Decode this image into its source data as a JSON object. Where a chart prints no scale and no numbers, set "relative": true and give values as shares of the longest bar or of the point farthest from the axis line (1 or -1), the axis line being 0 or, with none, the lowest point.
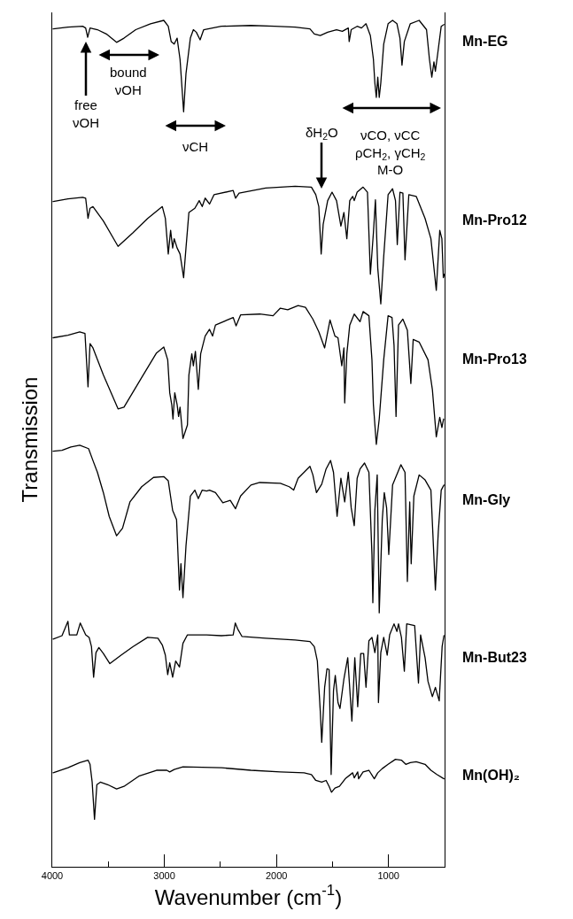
{
  "chart_data": {
    "type": "line",
    "relative": true,
    "line_style": "solid",
    "xlabel": "Wavenumber (cm$^{-1}$)",
    "ylabel": "Transmission",
    "xlim": [
      4000,
      500
    ],
    "xticks": [
      4000,
      {
        "value": 3500,
        "label": null
      },
      3000,
      {
        "value": 2500,
        "label": null
      },
      2000,
      {
        "value": 1500,
        "label": null
      },
      1000
    ],
    "annotations": [
      "free\nνOH",
      "bound\nνOH",
      "νCH",
      "δH$_{2}$O",
      "νCO, νCC\nρCH$_{2}$, γCH$_{2}$\nM-O"
    ],
    "series": [
      {
        "name": "Mn-EG",
        "color": "#000000",
        "x": [
          3992,
          3860,
          3729,
          3702,
          3684,
          3663,
          3597,
          3518,
          3426,
          3360,
          3255,
          3123,
          3005,
          2965,
          2939,
          2912,
          2886,
          2860,
          2828,
          2807,
          2768,
          2741,
          2715,
          2681,
          2649,
          2570,
          2491,
          2228,
          2017,
          1833,
          1701,
          1662,
          1609,
          1543,
          1464,
          1412,
          1359,
          1351,
          1333,
          1280,
          1241,
          1201,
          1162,
          1135,
          1122,
          1109,
          1096,
          1083,
          1069,
          1043,
          1004,
          964,
          925,
          898,
          880,
          859,
          806,
          727,
          661,
          635,
          614,
          595,
          582,
          561,
          530,
          506
        ],
        "values": [
          0.99,
          0.992,
          0.993,
          0.991,
          0.98,
          0.991,
          0.989,
          0.984,
          0.974,
          0.979,
          0.989,
          0.996,
          1.0,
          0.993,
          0.975,
          0.972,
          0.979,
          0.954,
          0.892,
          0.937,
          0.979,
          0.989,
          0.986,
          0.977,
          0.989,
          0.991,
          0.993,
          0.994,
          0.993,
          0.992,
          0.99,
          0.984,
          0.982,
          0.986,
          0.989,
          0.987,
          0.991,
          0.975,
          0.989,
          0.993,
          0.991,
          0.996,
          0.982,
          0.954,
          0.926,
          0.909,
          0.933,
          0.909,
          0.926,
          0.972,
          0.996,
          1.0,
          0.996,
          0.979,
          0.947,
          0.975,
          0.996,
          1.0,
          0.989,
          0.954,
          0.933,
          0.951,
          0.94,
          0.961,
          0.993,
          0.995
        ]
      },
      {
        "name": "Mn-Pro12",
        "color": "#000000",
        "x": [
          3992,
          3860,
          3729,
          3702,
          3681,
          3663,
          3637,
          3544,
          3413,
          3281,
          3149,
          3018,
          2991,
          2965,
          2944,
          2926,
          2912,
          2886,
          2860,
          2828,
          2807,
          2781,
          2728,
          2689,
          2662,
          2636,
          2597,
          2557,
          2386,
          2365,
          2333,
          2096,
          1833,
          1688,
          1649,
          1622,
          1601,
          1583,
          1543,
          1504,
          1464,
          1425,
          1398,
          1372,
          1346,
          1320,
          1306,
          1280,
          1227,
          1188,
          1162,
          1135,
          1117,
          1096,
          1069,
          1043,
          1004,
          964,
          938,
          922,
          898,
          872,
          853,
          819,
          753,
          674,
          622,
          574,
          543,
          524,
          511,
          503
        ],
        "values": [
          0.786,
          0.789,
          0.791,
          0.79,
          0.766,
          0.778,
          0.78,
          0.763,
          0.733,
          0.749,
          0.766,
          0.78,
          0.766,
          0.724,
          0.752,
          0.731,
          0.742,
          0.731,
          0.724,
          0.696,
          0.731,
          0.773,
          0.778,
          0.787,
          0.78,
          0.79,
          0.783,
          0.794,
          0.799,
          0.79,
          0.796,
          0.802,
          0.804,
          0.803,
          0.794,
          0.78,
          0.724,
          0.759,
          0.787,
          0.797,
          0.787,
          0.757,
          0.773,
          0.742,
          0.787,
          0.792,
          0.787,
          0.797,
          0.803,
          0.797,
          0.7,
          0.749,
          0.788,
          0.707,
          0.665,
          0.721,
          0.794,
          0.801,
          0.787,
          0.735,
          0.797,
          0.796,
          0.717,
          0.794,
          0.792,
          0.766,
          0.742,
          0.681,
          0.752,
          0.742,
          0.696,
          0.7
        ]
      },
      {
        "name": "Mn-Pro13",
        "color": "#000000",
        "x": [
          3992,
          3860,
          3755,
          3708,
          3681,
          3663,
          3637,
          3544,
          3413,
          3360,
          3202,
          3070,
          3005,
          2970,
          2952,
          2934,
          2923,
          2907,
          2886,
          2873,
          2860,
          2834,
          2794,
          2781,
          2755,
          2741,
          2723,
          2697,
          2676,
          2636,
          2597,
          2570,
          2544,
          2386,
          2360,
          2320,
          2149,
          2030,
          1965,
          1899,
          1807,
          1741,
          1675,
          1622,
          1570,
          1522,
          1478,
          1451,
          1417,
          1398,
          1391,
          1372,
          1346,
          1306,
          1254,
          1227,
          1175,
          1148,
          1135,
          1109,
          1083,
          1043,
          1004,
          969,
          951,
          933,
          911,
          872,
          832,
          801,
          780,
          727,
          648,
          609,
          574,
          543,
          524,
          509
        ],
        "values": [
          0.625,
          0.628,
          0.632,
          0.63,
          0.567,
          0.618,
          0.613,
          0.581,
          0.541,
          0.543,
          0.578,
          0.607,
          0.614,
          0.599,
          0.56,
          0.546,
          0.529,
          0.56,
          0.546,
          0.532,
          0.543,
          0.506,
          0.522,
          0.581,
          0.606,
          0.592,
          0.609,
          0.564,
          0.606,
          0.627,
          0.635,
          0.627,
          0.64,
          0.649,
          0.639,
          0.652,
          0.653,
          0.651,
          0.66,
          0.658,
          0.663,
          0.661,
          0.647,
          0.632,
          0.613,
          0.646,
          0.627,
          0.625,
          0.592,
          0.613,
          0.548,
          0.606,
          0.64,
          0.653,
          0.644,
          0.656,
          0.651,
          0.599,
          0.546,
          0.499,
          0.529,
          0.599,
          0.651,
          0.649,
          0.616,
          0.532,
          0.64,
          0.647,
          0.634,
          0.571,
          0.623,
          0.62,
          0.599,
          0.564,
          0.508,
          0.531,
          0.519,
          0.529
        ]
      },
      {
        "name": "Mn-Gly",
        "color": "#000000",
        "x": [
          3992,
          3913,
          3834,
          3755,
          3676,
          3637,
          3597,
          3544,
          3492,
          3426,
          3373,
          3307,
          3202,
          3097,
          3005,
          2965,
          2926,
          2891,
          2865,
          2852,
          2834,
          2807,
          2768,
          2728,
          2697,
          2662,
          2623,
          2597,
          2544,
          2478,
          2412,
          2365,
          2320,
          2228,
          2149,
          1965,
          1886,
          1846,
          1807,
          1754,
          1701,
          1675,
          1643,
          1596,
          1557,
          1517,
          1491,
          1459,
          1425,
          1391,
          1359,
          1333,
          1306,
          1280,
          1254,
          1214,
          1175,
          1148,
          1140,
          1122,
          1101,
          1083,
          1056,
          1038,
          1017,
          998,
          964,
          890,
          853,
          832,
          811,
          798,
          774,
          727,
          674,
          622,
          582,
          556,
          530,
          506
        ],
        "values": [
          0.491,
          0.492,
          0.496,
          0.498,
          0.494,
          0.48,
          0.466,
          0.442,
          0.414,
          0.391,
          0.4,
          0.431,
          0.449,
          0.46,
          0.461,
          0.456,
          0.421,
          0.41,
          0.327,
          0.358,
          0.318,
          0.379,
          0.438,
          0.445,
          0.435,
          0.445,
          0.444,
          0.445,
          0.442,
          0.43,
          0.433,
          0.423,
          0.438,
          0.451,
          0.454,
          0.453,
          0.449,
          0.445,
          0.459,
          0.466,
          0.473,
          0.463,
          0.442,
          0.452,
          0.47,
          0.48,
          0.466,
          0.414,
          0.459,
          0.431,
          0.466,
          0.424,
          0.403,
          0.459,
          0.47,
          0.477,
          0.466,
          0.369,
          0.312,
          0.421,
          0.463,
          0.3,
          0.41,
          0.442,
          0.424,
          0.369,
          0.451,
          0.475,
          0.466,
          0.337,
          0.431,
          0.358,
          0.438,
          0.463,
          0.457,
          0.445,
          0.327,
          0.396,
          0.445,
          0.451
        ]
      },
      {
        "name": "Mn-But23",
        "color": "#000000",
        "x": [
          3992,
          3913,
          3860,
          3847,
          3781,
          3750,
          3702,
          3671,
          3650,
          3631,
          3610,
          3584,
          3544,
          3486,
          3386,
          3281,
          3149,
          3057,
          3018,
          2991,
          2970,
          2952,
          2926,
          2899,
          2865,
          2834,
          2794,
          2623,
          2491,
          2386,
          2367,
          2346,
          2307,
          2096,
          1833,
          1701,
          1662,
          1635,
          1609,
          1596,
          1570,
          1549,
          1530,
          1512,
          1491,
          1475,
          1451,
          1433,
          1398,
          1364,
          1327,
          1301,
          1275,
          1248,
          1222,
          1201,
          1175,
          1148,
          1122,
          1096,
          1090,
          1069,
          1043,
          1012,
          990,
          951,
          925,
          911,
          885,
          859,
          838,
          767,
          733,
          714,
          674,
          648,
          609,
          582,
          548,
          522,
          506
        ],
        "values": [
          0.269,
          0.273,
          0.29,
          0.274,
          0.274,
          0.288,
          0.274,
          0.271,
          0.26,
          0.224,
          0.253,
          0.259,
          0.252,
          0.24,
          0.25,
          0.26,
          0.271,
          0.27,
          0.262,
          0.25,
          0.227,
          0.241,
          0.224,
          0.243,
          0.236,
          0.264,
          0.274,
          0.274,
          0.273,
          0.274,
          0.288,
          0.281,
          0.272,
          0.27,
          0.268,
          0.266,
          0.26,
          0.243,
          0.184,
          0.147,
          0.212,
          0.234,
          0.233,
          0.109,
          0.208,
          0.226,
          0.194,
          0.187,
          0.222,
          0.247,
          0.172,
          0.247,
          0.189,
          0.252,
          0.252,
          0.212,
          0.267,
          0.271,
          0.253,
          0.274,
          0.194,
          0.253,
          0.271,
          0.25,
          0.274,
          0.287,
          0.278,
          0.287,
          0.271,
          0.231,
          0.287,
          0.285,
          0.217,
          0.274,
          0.247,
          0.219,
          0.201,
          0.212,
          0.196,
          0.26,
          0.273
        ]
      },
      {
        "name": "Mn(OH)₂",
        "color": "#000000",
        "x": [
          3992,
          3860,
          3755,
          3681,
          3663,
          3644,
          3623,
          3602,
          3571,
          3505,
          3426,
          3360,
          3228,
          3070,
          2978,
          2952,
          2912,
          2834,
          2491,
          2228,
          1965,
          1754,
          1688,
          1649,
          1596,
          1557,
          1530,
          1509,
          1478,
          1438,
          1386,
          1320,
          1306,
          1275,
          1267,
          1227,
          1175,
          1127,
          1096,
          1056,
          1004,
          938,
          885,
          846,
          806,
          753,
          674,
          622,
          569,
          506
        ],
        "values": [
          0.111,
          0.117,
          0.123,
          0.126,
          0.121,
          0.1,
          0.056,
          0.097,
          0.1,
          0.097,
          0.092,
          0.095,
          0.107,
          0.114,
          0.114,
          0.112,
          0.115,
          0.118,
          0.117,
          0.114,
          0.112,
          0.111,
          0.109,
          0.102,
          0.1,
          0.102,
          0.095,
          0.088,
          0.093,
          0.095,
          0.104,
          0.111,
          0.105,
          0.112,
          0.104,
          0.112,
          0.114,
          0.104,
          0.111,
          0.116,
          0.121,
          0.127,
          0.126,
          0.121,
          0.123,
          0.124,
          0.121,
          0.114,
          0.109,
          0.104
        ]
      }
    ]
  }
}
